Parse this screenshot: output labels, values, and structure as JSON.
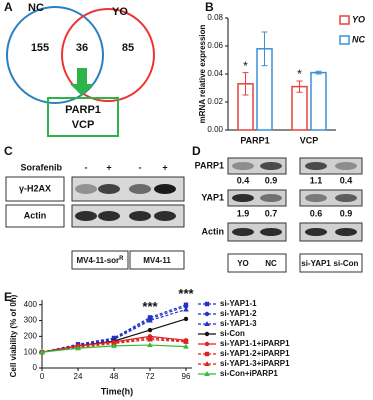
{
  "panel_labels": [
    "A",
    "B",
    "C",
    "D",
    "E"
  ],
  "venn": {
    "sets": [
      "NC",
      "YO"
    ],
    "counts": [
      155,
      36,
      85
    ],
    "result": [
      "PARP1",
      "VCP"
    ]
  },
  "blot_c": {
    "treatment": "Sorafenib",
    "treatment_marks": [
      "-",
      "+",
      "-",
      "+"
    ],
    "rows": [
      "γ-H2AX",
      "Actin"
    ],
    "groups": [
      {
        "label": "MV4-11-sor",
        "superscript": "R"
      },
      {
        "label": "MV4-11"
      }
    ]
  },
  "blot_d": {
    "rows": [
      "PARP1",
      "YAP1",
      "Actin"
    ],
    "quant": [
      [
        0.4,
        0.9,
        1.1,
        0.4
      ],
      [
        1.9,
        0.7,
        0.6,
        0.9
      ]
    ],
    "lanes": [
      "YO",
      "NC",
      "si-YAP1",
      "si-Con"
    ]
  },
  "chart_data": [
    {
      "type": "bar",
      "ylabel": "mRNA relative expression",
      "categories": [
        "PARP1",
        "VCP"
      ],
      "series": [
        {
          "name": "YO",
          "color": "#e8413c",
          "values": [
            0.033,
            0.031
          ],
          "errors": [
            0.008,
            0.004
          ]
        },
        {
          "name": "NC",
          "color": "#3d8fd9",
          "values": [
            0.058,
            0.041
          ],
          "errors": [
            0.012,
            0.001
          ]
        }
      ],
      "ylim": [
        0,
        0.08
      ],
      "yticks": [
        {
          "value": 0,
          "label": "0.00"
        },
        0.02,
        0.04,
        0.06,
        0.08
      ],
      "annotations": [
        "*",
        "*"
      ],
      "legend": "right"
    },
    {
      "type": "line",
      "xlabel": "Time(h)",
      "ylabel": "Cell viability (% of 0h)",
      "x": [
        0,
        24,
        48,
        72,
        96
      ],
      "xlim": [
        0,
        100
      ],
      "xticks": [
        0,
        24,
        48,
        72,
        96
      ],
      "ylim": [
        0,
        430
      ],
      "yticks": [
        0,
        100,
        200,
        300,
        400
      ],
      "series": [
        {
          "name": "si-YAP1-1",
          "color": "#2233cc",
          "marker": "square",
          "dashed": true,
          "values": [
            100,
            150,
            190,
            320,
            400
          ]
        },
        {
          "name": "si-YAP1-2",
          "color": "#2233cc",
          "marker": "circle",
          "dashed": true,
          "values": [
            100,
            145,
            185,
            310,
            390
          ]
        },
        {
          "name": "si-YAP1-3",
          "color": "#2233cc",
          "marker": "triangle",
          "dashed": true,
          "values": [
            100,
            140,
            180,
            300,
            370
          ]
        },
        {
          "name": "si-Con",
          "color": "#111111",
          "marker": "circle",
          "dashed": false,
          "values": [
            100,
            140,
            170,
            240,
            310
          ]
        },
        {
          "name": "si-YAP1-1+iPARP1",
          "color": "#e02020",
          "marker": "circle",
          "dashed": false,
          "values": [
            100,
            140,
            165,
            200,
            175
          ]
        },
        {
          "name": "si-YAP1-2+iPARP1",
          "color": "#e02020",
          "marker": "square",
          "dashed": true,
          "values": [
            100,
            135,
            160,
            190,
            170
          ]
        },
        {
          "name": "si-YAP1-3+iPARP1",
          "color": "#e02020",
          "marker": "triangle",
          "dashed": true,
          "values": [
            100,
            130,
            155,
            180,
            165
          ]
        },
        {
          "name": "si-Con+iPARP1",
          "color": "#33bb33",
          "marker": "triangle",
          "dashed": false,
          "values": [
            100,
            125,
            140,
            145,
            135
          ]
        }
      ],
      "annotations": [
        {
          "text": "***",
          "x": 72
        },
        {
          "text": "***",
          "x": 96
        }
      ],
      "legend": "right"
    }
  ]
}
